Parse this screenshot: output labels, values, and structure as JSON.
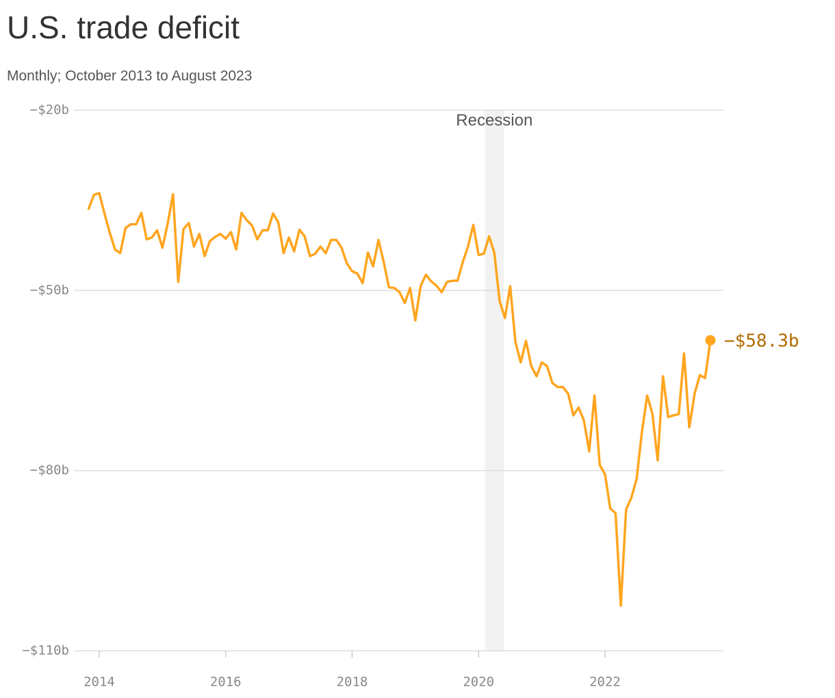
{
  "chart_data": {
    "type": "line",
    "title": "U.S. trade deficit",
    "subtitle": "Monthly; October 2013 to August 2023",
    "x": [
      2013.833,
      2013.917,
      2014,
      2014.083,
      2014.167,
      2014.25,
      2014.333,
      2014.417,
      2014.5,
      2014.583,
      2014.667,
      2014.75,
      2014.833,
      2014.917,
      2015,
      2015.083,
      2015.167,
      2015.25,
      2015.333,
      2015.417,
      2015.5,
      2015.583,
      2015.667,
      2015.75,
      2015.833,
      2015.917,
      2016,
      2016.083,
      2016.167,
      2016.25,
      2016.333,
      2016.417,
      2016.5,
      2016.583,
      2016.667,
      2016.75,
      2016.833,
      2016.917,
      2017,
      2017.083,
      2017.167,
      2017.25,
      2017.333,
      2017.417,
      2017.5,
      2017.583,
      2017.667,
      2017.75,
      2017.833,
      2017.917,
      2018,
      2018.083,
      2018.167,
      2018.25,
      2018.333,
      2018.417,
      2018.5,
      2018.583,
      2018.667,
      2018.75,
      2018.833,
      2018.917,
      2019,
      2019.083,
      2019.167,
      2019.25,
      2019.333,
      2019.417,
      2019.5,
      2019.583,
      2019.667,
      2019.75,
      2019.833,
      2019.917,
      2020,
      2020.083,
      2020.167,
      2020.25,
      2020.333,
      2020.417,
      2020.5,
      2020.583,
      2020.667,
      2020.75,
      2020.833,
      2020.917,
      2021,
      2021.083,
      2021.167,
      2021.25,
      2021.333,
      2021.417,
      2021.5,
      2021.583,
      2021.667,
      2021.75,
      2021.833,
      2021.917,
      2022,
      2022.083,
      2022.167,
      2022.25,
      2022.333,
      2022.417,
      2022.5,
      2022.583,
      2022.667,
      2022.75,
      2022.833,
      2022.917,
      2023,
      2023.083,
      2023.167,
      2023.25,
      2023.333,
      2023.417,
      2023.5,
      2023.583,
      2023.667
    ],
    "series": [
      {
        "color": "#ffa51f",
        "values": [
          -36.4,
          -34.1,
          -33.8,
          -37.2,
          -40.4,
          -43.2,
          -43.8,
          -39.6,
          -39.0,
          -39.0,
          -37.1,
          -41.5,
          -41.2,
          -40.0,
          -42.9,
          -38.9,
          -34.0,
          -48.6,
          -39.8,
          -38.8,
          -42.7,
          -40.6,
          -44.3,
          -41.8,
          -41.1,
          -40.6,
          -41.4,
          -40.3,
          -43.2,
          -37.1,
          -38.3,
          -39.2,
          -41.5,
          -40.0,
          -40.0,
          -37.2,
          -38.7,
          -43.8,
          -41.2,
          -43.5,
          -39.9,
          -41.0,
          -44.3,
          -43.9,
          -42.7,
          -43.8,
          -41.6,
          -41.6,
          -42.9,
          -45.5,
          -46.8,
          -47.2,
          -48.8,
          -43.7,
          -46.0,
          -41.6,
          -45.3,
          -49.5,
          -49.6,
          -50.3,
          -52.1,
          -49.6,
          -55.0,
          -49.3,
          -47.4,
          -48.5,
          -49.2,
          -50.3,
          -48.6,
          -48.4,
          -48.4,
          -45.3,
          -42.7,
          -39.1,
          -44.1,
          -43.9,
          -41.0,
          -43.8,
          -51.8,
          -54.6,
          -49.3,
          -58.6,
          -62.0,
          -58.4,
          -62.6,
          -64.3,
          -62.0,
          -62.6,
          -65.4,
          -66.1,
          -66.1,
          -67.2,
          -70.8,
          -69.5,
          -71.7,
          -76.8,
          -67.5,
          -79.1,
          -80.6,
          -86.3,
          -87.1,
          -102.5,
          -86.5,
          -84.5,
          -81.4,
          -73.6,
          -67.5,
          -70.6,
          -78.3,
          -64.3,
          -71.1,
          -70.8,
          -70.6,
          -60.5,
          -72.8,
          -67.2,
          -64.1,
          -64.6,
          -58.3
        ],
        "value_labels": [
          null,
          null,
          null,
          null,
          null,
          null,
          null,
          null,
          null,
          null,
          null,
          null,
          null,
          null,
          null,
          null,
          null,
          null,
          null,
          null,
          null,
          null,
          null,
          null,
          null,
          null,
          null,
          null,
          null,
          null,
          null,
          null,
          null,
          null,
          null,
          null,
          null,
          null,
          null,
          null,
          null,
          null,
          null,
          null,
          null,
          null,
          null,
          null,
          null,
          null,
          null,
          null,
          null,
          null,
          null,
          null,
          null,
          null,
          null,
          null,
          null,
          null,
          null,
          null,
          null,
          null,
          null,
          null,
          null,
          null,
          null,
          null,
          null,
          null,
          null,
          null,
          null,
          null,
          null,
          null,
          null,
          null,
          null,
          null,
          null,
          null,
          null,
          null,
          null,
          null,
          null,
          null,
          null,
          null,
          null,
          null,
          null,
          null,
          null,
          null,
          null,
          null,
          null,
          null,
          null,
          null,
          null,
          null,
          null,
          null,
          null,
          null,
          null,
          null,
          null,
          null,
          null,
          null,
          "−$58.3b"
        ],
        "label_color": "#b36b00"
      }
    ],
    "xlim": [
      2013.6,
      2023.873
    ],
    "xticks": [
      2014,
      2016,
      2018,
      2020,
      2022
    ],
    "ylim": [
      -110,
      -20
    ],
    "yticks": [
      {
        "value": -20,
        "label": "−$20b"
      },
      {
        "value": -50,
        "label": "−$50b"
      },
      {
        "value": -80,
        "label": "−$80b"
      },
      {
        "value": -110,
        "label": "−$110b"
      }
    ],
    "grid": true,
    "shaded_region": {
      "label": "Recession",
      "start": 2020.1,
      "end": 2020.4,
      "color": "#f2f2f2"
    }
  }
}
